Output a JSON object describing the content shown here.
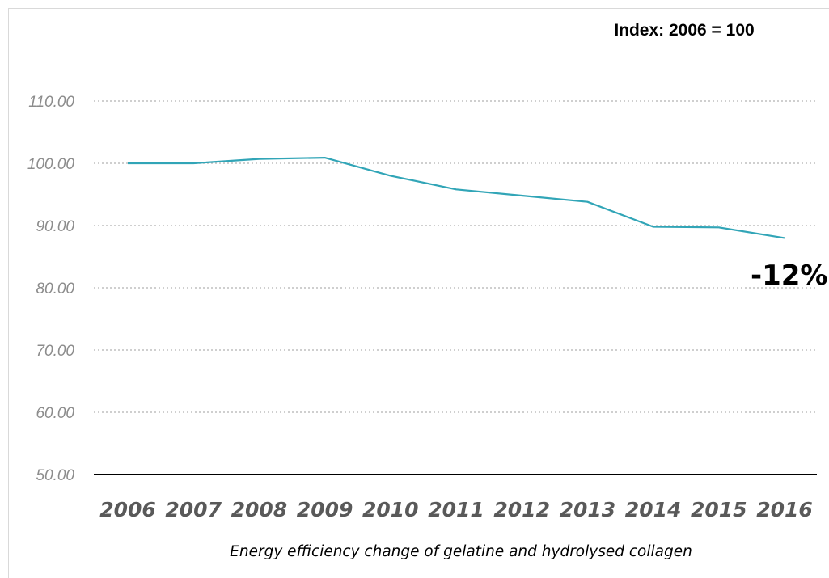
{
  "chart_data": {
    "type": "line",
    "title": "Index: 2006 = 100",
    "xlabel": "Energy efficiency change of gelatine and hydrolysed collagen",
    "ylabel": "",
    "categories": [
      "2006",
      "2007",
      "2008",
      "2009",
      "2010",
      "2011",
      "2012",
      "2013",
      "2014",
      "2015",
      "2016"
    ],
    "series": [
      {
        "values": [
          100.0,
          100.0,
          100.7,
          100.9,
          98.0,
          95.8,
          94.8,
          93.8,
          89.8,
          89.7,
          88.0
        ],
        "color": "#31a5b7"
      }
    ],
    "yticks": [
      "50.00",
      "60.00",
      "70.00",
      "80.00",
      "90.00",
      "100.00",
      "110.00"
    ],
    "ylim": [
      50,
      110
    ],
    "grid": true,
    "legend": "none",
    "annotation": "-12%"
  }
}
